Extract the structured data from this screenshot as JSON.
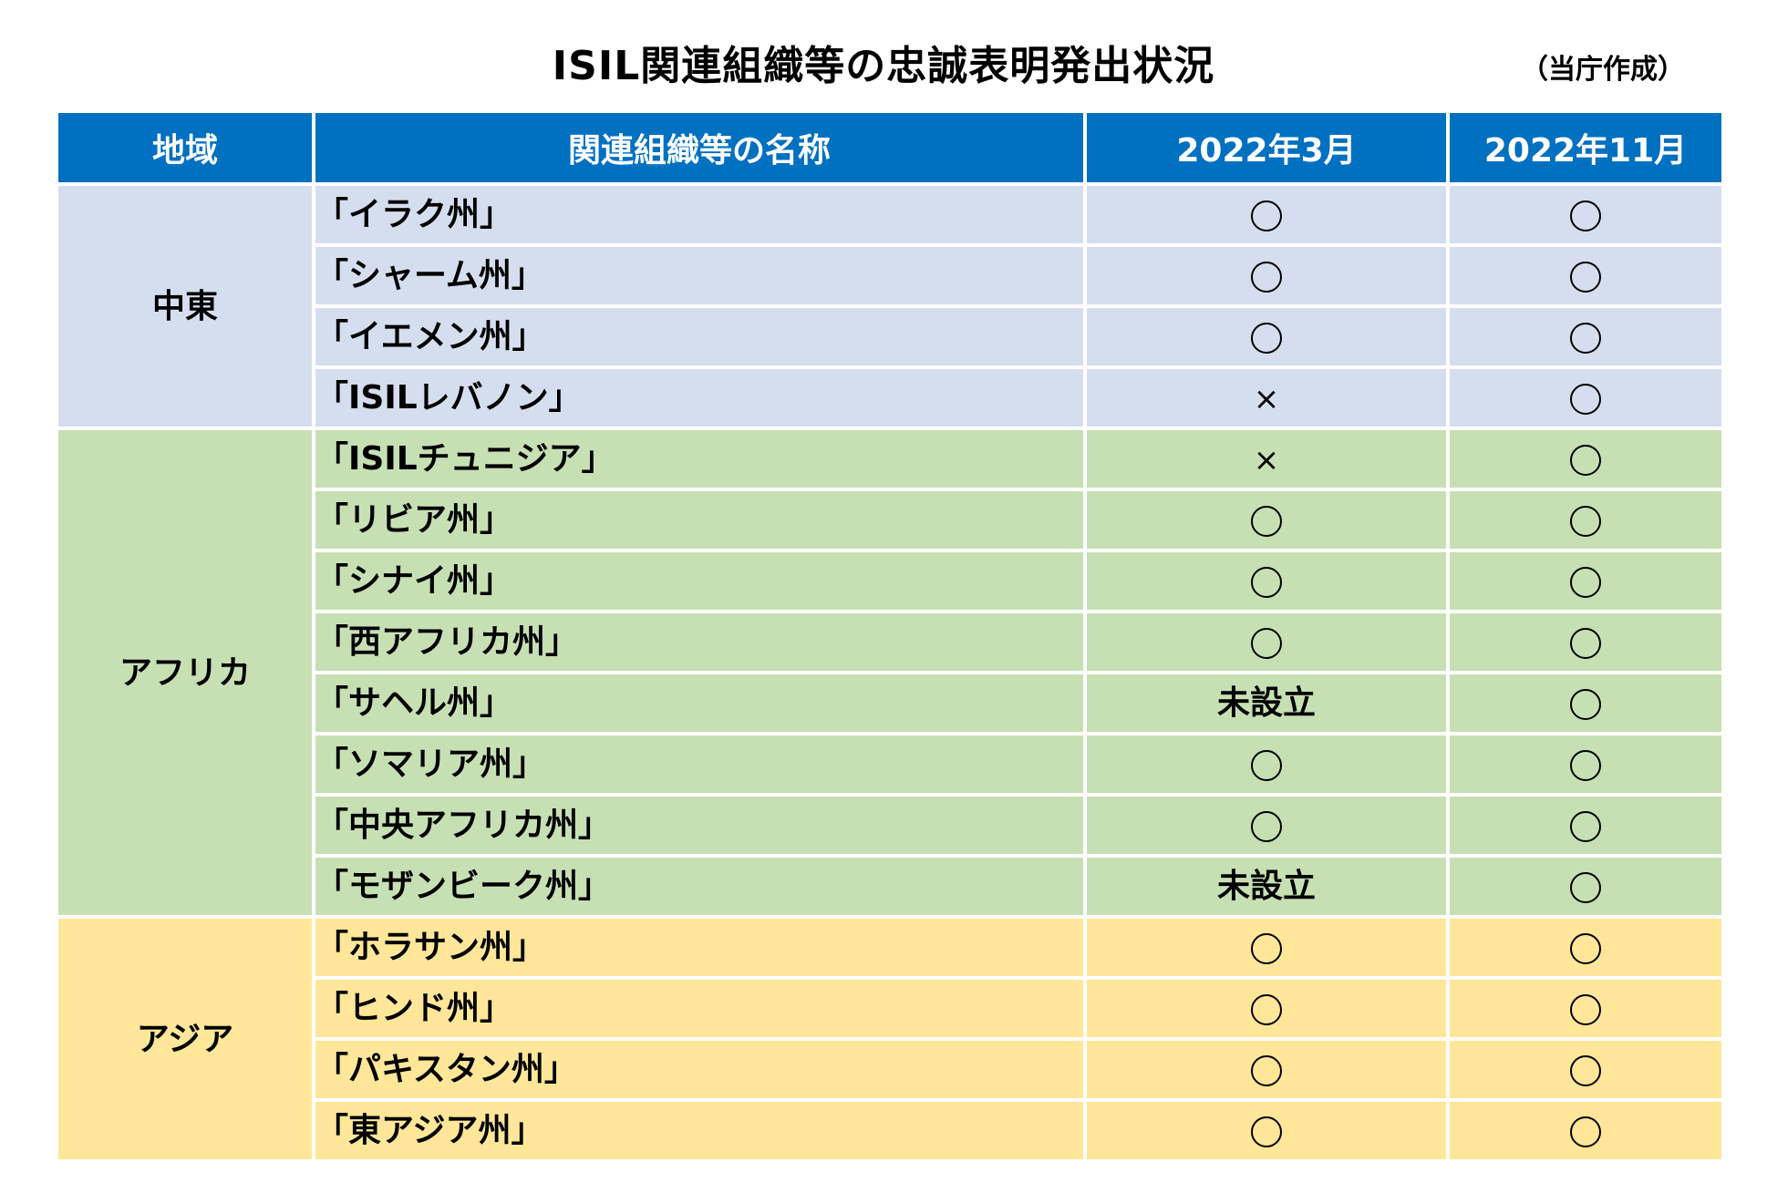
{
  "title": "ISIL関連組織等の忠誠表明発出状況",
  "source_note": "（当庁作成）",
  "colors": {
    "header_bg": "#0070C0",
    "header_text": "#FFFFFF",
    "middle_east_bg": "#D5DEEF",
    "africa_bg": "#C6E0B4",
    "asia_bg": "#FFE699",
    "border": "#FFFFFF"
  },
  "mark_legend": {
    "circle": "〇",
    "cross": "×"
  },
  "table": {
    "headers": [
      "地域",
      "関連組織等の名称",
      "2022年3月",
      "2022年11月"
    ],
    "regions": [
      {
        "name": "中東",
        "color_key": "middle_east_bg",
        "rows": [
          {
            "name": "「イラク州」",
            "mar": "〇",
            "nov": "〇"
          },
          {
            "name": "「シャーム州」",
            "mar": "〇",
            "nov": "〇"
          },
          {
            "name": "「イエメン州」",
            "mar": "〇",
            "nov": "〇"
          },
          {
            "name": "「ISILレバノン」",
            "mar": "×",
            "nov": "〇"
          }
        ]
      },
      {
        "name": "アフリカ",
        "color_key": "africa_bg",
        "rows": [
          {
            "name": "「ISILチュニジア」",
            "mar": "×",
            "nov": "〇"
          },
          {
            "name": "「リビア州」",
            "mar": "〇",
            "nov": "〇"
          },
          {
            "name": "「シナイ州」",
            "mar": "〇",
            "nov": "〇"
          },
          {
            "name": "「西アフリカ州」",
            "mar": "〇",
            "nov": "〇"
          },
          {
            "name": "「サヘル州」",
            "mar": "未設立",
            "nov": "〇"
          },
          {
            "name": "「ソマリア州」",
            "mar": "〇",
            "nov": "〇"
          },
          {
            "name": "「中央アフリカ州」",
            "mar": "〇",
            "nov": "〇"
          },
          {
            "name": "「モザンビーク州」",
            "mar": "未設立",
            "nov": "〇"
          }
        ]
      },
      {
        "name": "アジア",
        "color_key": "asia_bg",
        "rows": [
          {
            "name": "「ホラサン州」",
            "mar": "〇",
            "nov": "〇"
          },
          {
            "name": "「ヒンド州」",
            "mar": "〇",
            "nov": "〇"
          },
          {
            "name": "「パキスタン州」",
            "mar": "〇",
            "nov": "〇"
          },
          {
            "name": "「東アジア州」",
            "mar": "〇",
            "nov": "〇"
          }
        ]
      }
    ]
  }
}
